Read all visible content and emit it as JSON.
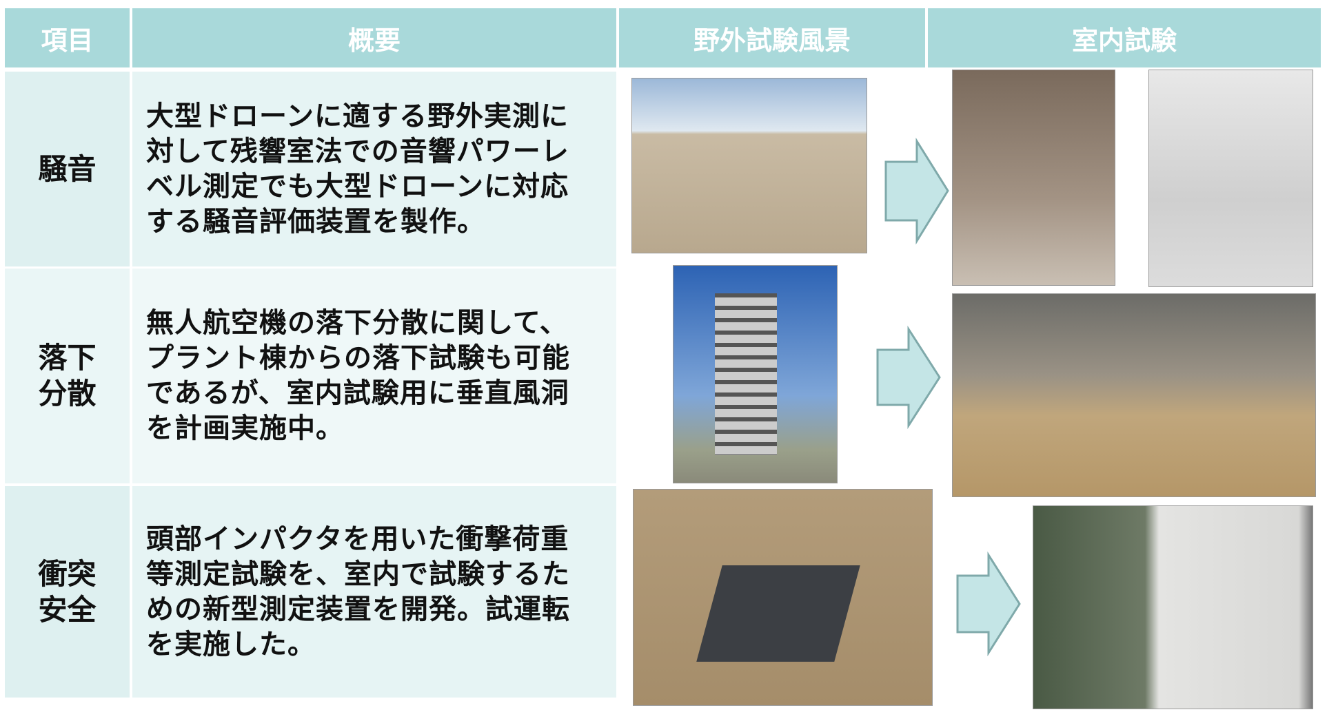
{
  "table": {
    "header": [
      "項目",
      "概要",
      "野外試験風景",
      "室内試験"
    ],
    "rows": [
      {
        "item": [
          "騒音"
        ],
        "summary": [
          "大型ドローンに適する野外実測に",
          "対して残響室法での音響パワーレ",
          "ベル測定でも大型ドローンに対応",
          "する騒音評価装置を製作。"
        ]
      },
      {
        "item": [
          "落下",
          "分散"
        ],
        "summary": [
          "無人航空機の落下分散に関して、",
          "プラント棟からの落下試験も可能",
          "であるが、室内試験用に垂直風洞",
          "を計画実施中。"
        ]
      },
      {
        "item": [
          "衝突",
          "安全"
        ],
        "summary": [
          "頭部インパクタを用いた衝撃荷重",
          "等測定試験を、室内で試験するた",
          "めの新型測定装置を開発。試運転",
          "を実施した。"
        ]
      }
    ]
  }
}
